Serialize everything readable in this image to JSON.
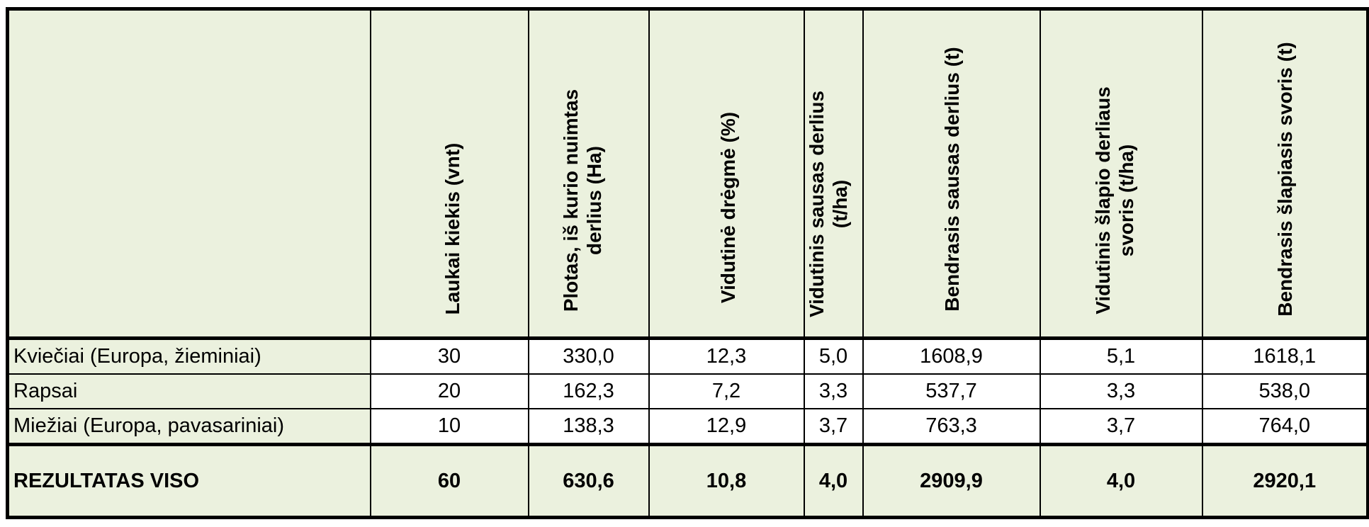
{
  "table": {
    "headers": [
      "",
      "Laukai kiekis (vnt)",
      "Plotas, iš kurio nuimtas derlius (Ha)",
      "Vidutinė drėgmė (%)",
      "Vidutinis sausas derlius (t/ha)",
      "Bendrasis sausas derlius (t)",
      "Vidutinis šlapio derliaus svoris (t/ha)",
      "Bendrasis šlapiasis svoris (t)"
    ],
    "rows": [
      [
        "Kviečiai (Europa, žieminiai)",
        "30",
        "330,0",
        "12,3",
        "5,0",
        "1608,9",
        "5,1",
        "1618,1"
      ],
      [
        "Rapsai",
        "20",
        "162,3",
        "7,2",
        "3,3",
        "537,7",
        "3,3",
        "538,0"
      ],
      [
        "Miežiai (Europa, pavasariniai)",
        "10",
        "138,3",
        "12,9",
        "3,7",
        "763,3",
        "3,7",
        "764,0"
      ]
    ],
    "total": [
      "REZULTATAS VISO",
      "60",
      "630,6",
      "10,8",
      "4,0",
      "2909,9",
      "4,0",
      "2920,1"
    ]
  },
  "colors": {
    "header_bg": "#ebf1de",
    "border": "#000000"
  }
}
